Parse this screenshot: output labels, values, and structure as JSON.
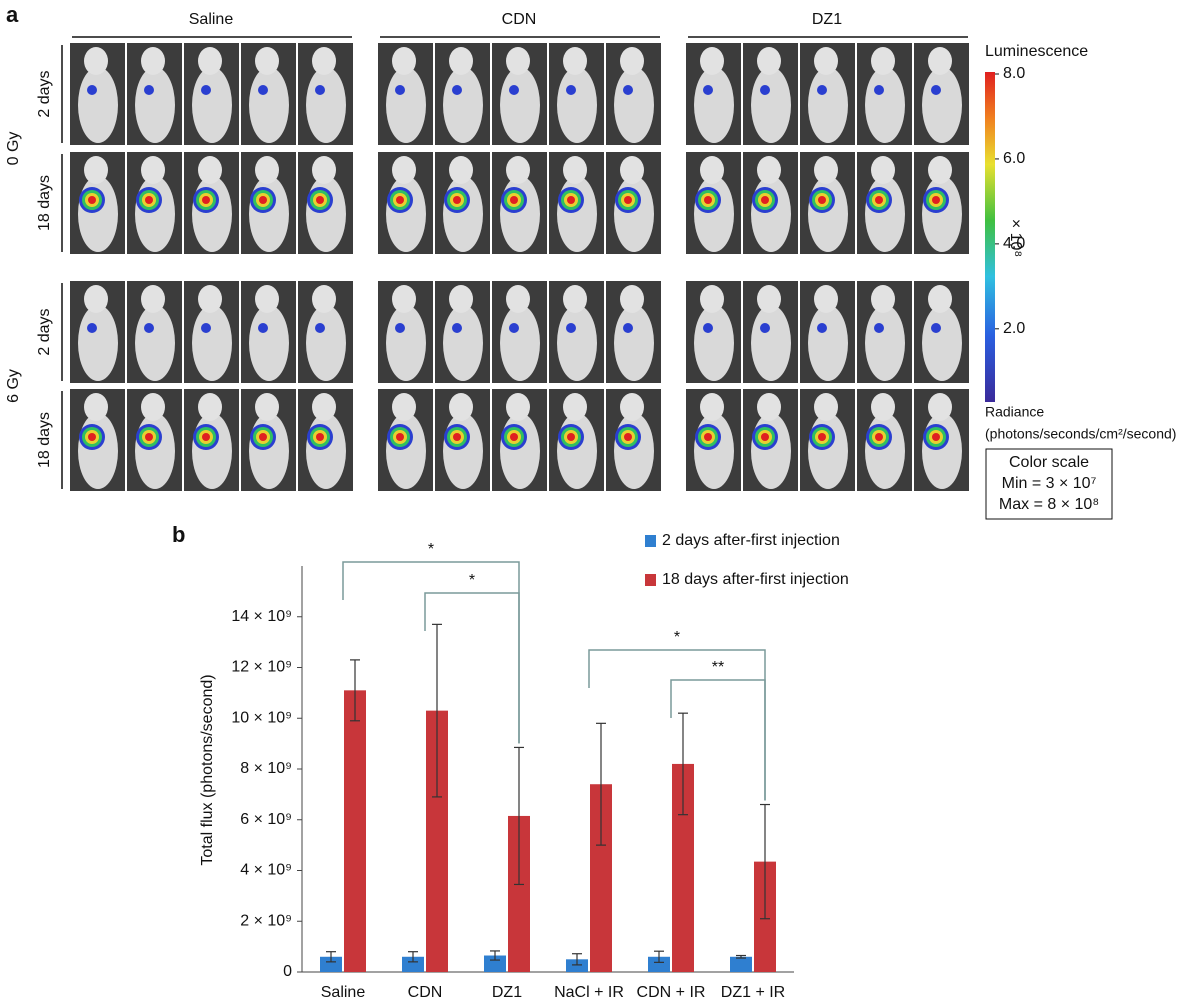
{
  "panel_a": {
    "label": "a",
    "groups": [
      "Saline",
      "CDN",
      "DZ1"
    ],
    "doses": [
      "0 Gy",
      "6 Gy"
    ],
    "times": [
      "2 days",
      "18 days"
    ],
    "colorbar": {
      "title": "Luminescence",
      "lim": [
        0.3,
        8
      ],
      "ticks": [
        {
          "value": 8,
          "label": "8.0"
        },
        {
          "value": 6,
          "label": "6.0"
        },
        {
          "value": 4,
          "label": "4.0"
        },
        {
          "value": 2,
          "label": "2.0"
        }
      ],
      "multiplier": "× 10⁸",
      "unit_lines": [
        "Radiance",
        "(photons/seconds/cm²/second)"
      ],
      "scale_box": [
        "Color scale",
        "Min = 3 × 10⁷",
        "Max = 8 × 10⁸"
      ]
    }
  },
  "chart_data": {
    "type": "bar",
    "panel_label": "b",
    "y_label": "Total flux (photons/second)",
    "categories": [
      "Saline",
      "CDN",
      "DZ1",
      "NaCl + IR",
      "CDN + IR",
      "DZ1 + IR"
    ],
    "series": [
      {
        "name": "2 days after-first injection",
        "color": "#2f7fd0",
        "values": [
          600000000.0,
          600000000.0,
          650000000.0,
          500000000.0,
          600000000.0,
          600000000.0
        ],
        "errors": [
          200000000.0,
          200000000.0,
          180000000.0,
          220000000.0,
          220000000.0,
          50000000.0
        ]
      },
      {
        "name": "18 days after-first injection",
        "color": "#c8363a",
        "values": [
          11100000000.0,
          10300000000.0,
          6150000000.0,
          7400000000.0,
          8200000000.0,
          4350000000.0
        ],
        "errors": [
          1200000000.0,
          3400000000.0,
          2700000000.0,
          2400000000.0,
          2000000000.0,
          2250000000.0
        ]
      }
    ],
    "ylim": [
      0,
      16000000000.0
    ],
    "yticks": [
      0,
      {
        "value": 2000000000.0,
        "label": "2 × 10⁹"
      },
      {
        "value": 4000000000.0,
        "label": "4 × 10⁹"
      },
      {
        "value": 6000000000.0,
        "label": "6 × 10⁹"
      },
      {
        "value": 8000000000.0,
        "label": "8 × 10⁹"
      },
      {
        "value": 10000000000.0,
        "label": "10 × 10⁹"
      },
      {
        "value": 12000000000.0,
        "label": "12 × 10⁹"
      },
      {
        "value": 14000000000.0,
        "label": "14 × 10⁹"
      }
    ],
    "significance": [
      {
        "label": "*",
        "between": [
          "Saline",
          "DZ1"
        ]
      },
      {
        "label": "*",
        "between": [
          "CDN",
          "DZ1"
        ]
      },
      {
        "label": "*",
        "between": [
          "NaCl + IR",
          "DZ1 + IR"
        ]
      },
      {
        "label": "**",
        "between": [
          "CDN + IR",
          "DZ1 + IR"
        ]
      }
    ]
  }
}
